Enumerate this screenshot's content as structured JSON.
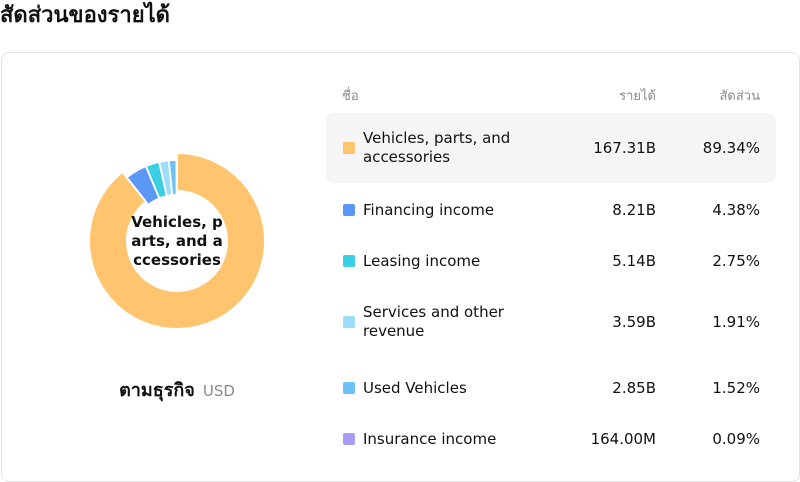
{
  "title": "สัดส่วนของรายได้",
  "center_label": "Vehicles, parts, and accessories",
  "group_label": "ตามธุรกิจ",
  "currency": "USD",
  "columns": {
    "name": "ชื่อ",
    "revenue": "รายได้",
    "share": "สัดส่วน"
  },
  "chart_data": {
    "type": "pie",
    "donut": true,
    "categories": [
      "Vehicles, parts, and accessories",
      "Financing income",
      "Leasing income",
      "Services and other revenue",
      "Used Vehicles",
      "Insurance income"
    ],
    "revenue_labels": [
      "167.31B",
      "8.21B",
      "5.14B",
      "3.59B",
      "2.85B",
      "164.00M"
    ],
    "share_labels": [
      "89.34%",
      "4.38%",
      "2.75%",
      "1.91%",
      "1.52%",
      "0.09%"
    ],
    "values": [
      89.34,
      4.38,
      2.75,
      1.91,
      1.52,
      0.09
    ],
    "colors": [
      "#FFC46E",
      "#5B97F5",
      "#3ACFE3",
      "#9EDDF7",
      "#6EC1F7",
      "#A79DF2"
    ],
    "highlighted": 0
  }
}
